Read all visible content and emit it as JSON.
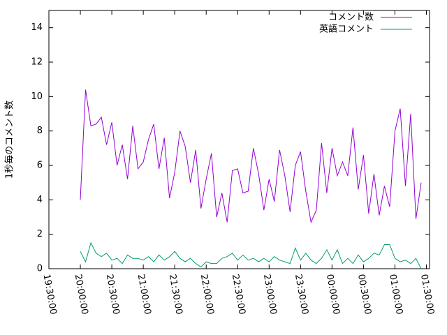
{
  "chart_data": {
    "type": "line",
    "ylabel": "1秒毎のコメント数",
    "x": [
      "20:00:00",
      "20:05:00",
      "20:10:00",
      "20:15:00",
      "20:20:00",
      "20:25:00",
      "20:30:00",
      "20:35:00",
      "20:40:00",
      "20:45:00",
      "20:50:00",
      "20:55:00",
      "21:00:00",
      "21:05:00",
      "21:10:00",
      "21:15:00",
      "21:20:00",
      "21:25:00",
      "21:30:00",
      "21:35:00",
      "21:40:00",
      "21:45:00",
      "21:50:00",
      "21:55:00",
      "22:00:00",
      "22:05:00",
      "22:10:00",
      "22:15:00",
      "22:20:00",
      "22:25:00",
      "22:30:00",
      "22:35:00",
      "22:40:00",
      "22:45:00",
      "22:50:00",
      "22:55:00",
      "23:00:00",
      "23:05:00",
      "23:10:00",
      "23:15:00",
      "23:20:00",
      "23:25:00",
      "23:30:00",
      "23:35:00",
      "23:40:00",
      "23:45:00",
      "23:50:00",
      "23:55:00",
      "00:00:00",
      "00:05:00",
      "00:10:00",
      "00:15:00",
      "00:20:00",
      "00:25:00",
      "00:30:00",
      "00:35:00",
      "00:40:00",
      "00:45:00",
      "00:50:00",
      "00:55:00",
      "01:00:00",
      "01:05:00",
      "01:10:00",
      "01:15:00",
      "01:20:00",
      "01:25:00"
    ],
    "series": [
      {
        "name": "コメント数",
        "color": "#9400d3",
        "values": [
          4.0,
          10.4,
          8.3,
          8.4,
          8.8,
          7.2,
          8.5,
          6.0,
          7.2,
          5.2,
          8.3,
          5.8,
          6.2,
          7.5,
          8.4,
          5.8,
          7.6,
          4.1,
          5.6,
          8.0,
          7.1,
          5.0,
          6.9,
          3.5,
          5.2,
          6.7,
          3.0,
          4.4,
          2.7,
          5.7,
          5.8,
          4.4,
          4.5,
          7.0,
          5.5,
          3.4,
          5.2,
          3.9,
          6.9,
          5.4,
          3.3,
          6.0,
          6.8,
          4.5,
          2.7,
          3.4,
          7.3,
          4.4,
          7.0,
          5.4,
          6.2,
          5.4,
          8.2,
          4.6,
          6.6,
          3.2,
          5.5,
          3.1,
          4.8,
          3.6,
          8.0,
          9.3,
          4.8,
          9.0,
          2.9,
          5.0
        ]
      },
      {
        "name": "英語コメント",
        "color": "#009e73",
        "values": [
          1.0,
          0.4,
          1.5,
          0.9,
          0.7,
          0.9,
          0.5,
          0.6,
          0.3,
          0.8,
          0.6,
          0.6,
          0.5,
          0.7,
          0.4,
          0.8,
          0.5,
          0.7,
          1.0,
          0.6,
          0.4,
          0.6,
          0.3,
          0.1,
          0.4,
          0.3,
          0.3,
          0.6,
          0.7,
          0.9,
          0.5,
          0.8,
          0.5,
          0.6,
          0.4,
          0.6,
          0.4,
          0.7,
          0.5,
          0.4,
          0.3,
          1.2,
          0.5,
          0.9,
          0.5,
          0.3,
          0.6,
          1.1,
          0.5,
          1.1,
          0.3,
          0.6,
          0.3,
          0.8,
          0.4,
          0.6,
          0.9,
          0.8,
          1.4,
          1.4,
          0.6,
          0.4,
          0.5,
          0.3,
          0.6,
          0.0
        ]
      }
    ],
    "xlim": [
      "19:30:00",
      "01:33:00"
    ],
    "xticks": [
      "19:30:00",
      "20:00:00",
      "20:30:00",
      "21:00:00",
      "21:30:00",
      "22:00:00",
      "22:30:00",
      "23:00:00",
      "23:30:00",
      "00:00:00",
      "00:30:00",
      "01:00:00",
      "01:30:00"
    ],
    "ylim": [
      0,
      15
    ],
    "yticks": [
      0,
      2,
      4,
      6,
      8,
      10,
      12,
      14
    ],
    "legend": "top-right"
  }
}
